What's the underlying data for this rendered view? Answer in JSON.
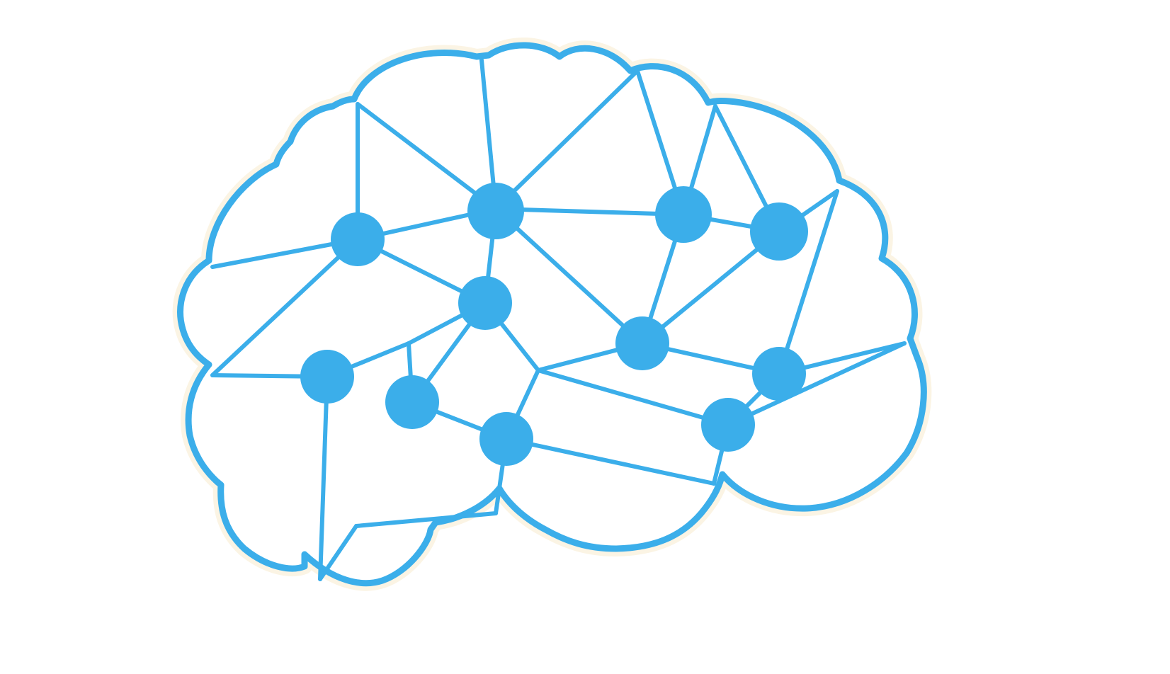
{
  "illustration": {
    "subject": "brain-network-icon",
    "colors": {
      "accent": "#3baeea",
      "glow": "#fbf4e4",
      "background": "#ffffff"
    }
  }
}
